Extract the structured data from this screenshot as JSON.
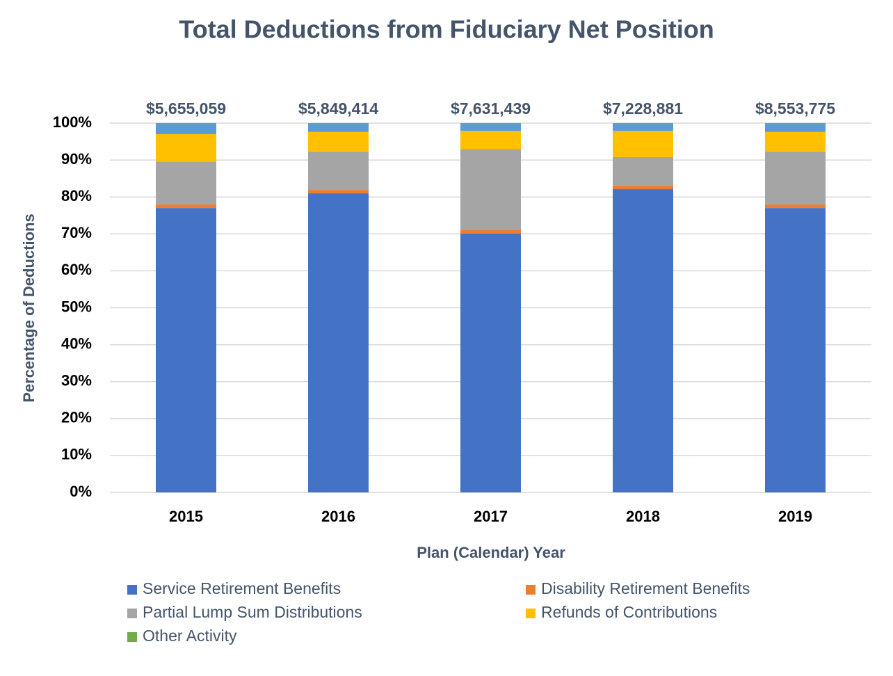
{
  "chart_data": {
    "type": "stacked_bar",
    "title": "Total Deductions from Fiduciary Net Position",
    "x_label": "Plan (Calendar) Year",
    "y_label": "Percentage of Deductions",
    "categories": [
      "2015",
      "2016",
      "2017",
      "2018",
      "2019"
    ],
    "annotations": [
      "$5,655,059",
      "$5,849,414",
      "$7,631,439",
      "$7,228,881",
      "$8,553,775"
    ],
    "series": [
      {
        "name": "Service Retirement Benefits",
        "color": "#4472c4",
        "values": [
          77.0,
          81.0,
          70.1,
          82.1,
          77.0
        ]
      },
      {
        "name": "Disability Retirement Benefits",
        "color": "#ed7d31",
        "values": [
          1.0,
          0.9,
          0.9,
          1.0,
          1.0
        ]
      },
      {
        "name": "Partial Lump Sum Distributions",
        "color": "#a5a5a5",
        "values": [
          11.6,
          10.4,
          22.0,
          7.7,
          14.3
        ]
      },
      {
        "name": "Refunds of Contributions",
        "color": "#ffc000",
        "values": [
          7.4,
          5.3,
          4.9,
          7.1,
          5.3
        ]
      },
      {
        "color": "#5b9bd5",
        "values": [
          2.8,
          2.2,
          1.9,
          1.9,
          2.2
        ]
      },
      {
        "name": "Other Activity",
        "color": "#70ad47",
        "values": [
          0.2,
          0.2,
          0.2,
          0.2,
          0.2
        ]
      }
    ],
    "ylim": [
      0,
      100
    ],
    "yticks": [
      {
        "value": 0,
        "label": "0%"
      },
      {
        "value": 10,
        "label": "10%"
      },
      {
        "value": 20,
        "label": "20%"
      },
      {
        "value": 30,
        "label": "30%"
      },
      {
        "value": 40,
        "label": "40%"
      },
      {
        "value": 50,
        "label": "50%"
      },
      {
        "value": 60,
        "label": "60%"
      },
      {
        "value": 70,
        "label": "70%"
      },
      {
        "value": 80,
        "label": "80%"
      },
      {
        "value": 90,
        "label": "90%"
      },
      {
        "value": 100,
        "label": "100%"
      }
    ],
    "grid": true,
    "legend": "bottom"
  }
}
